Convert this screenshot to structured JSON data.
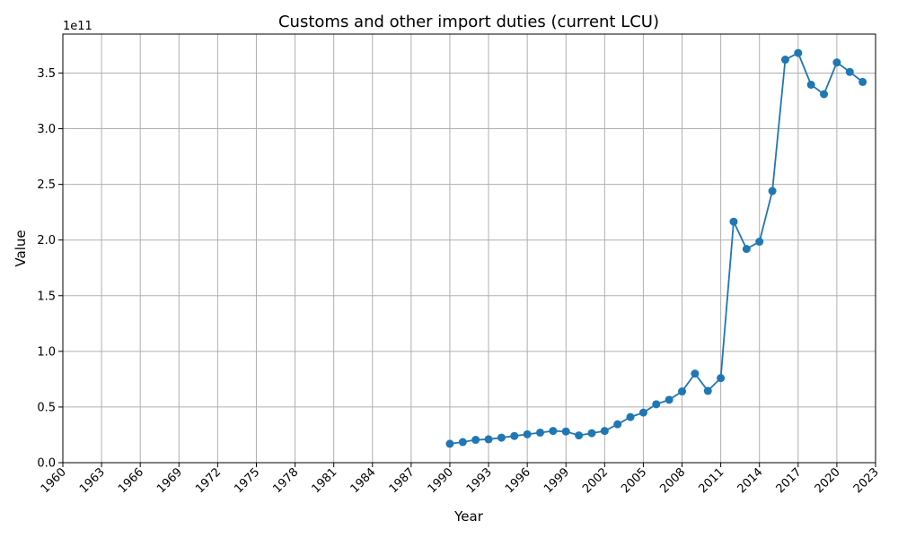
{
  "chart_data": {
    "type": "line",
    "title": "Customs and other import duties (current LCU)",
    "xlabel": "Year",
    "ylabel": "Value",
    "offset_label": "1e11",
    "xlim": [
      1960,
      2023
    ],
    "ylim": [
      0,
      385000000000
    ],
    "x_ticks": [
      "1960",
      "1963",
      "1966",
      "1969",
      "1972",
      "1975",
      "1978",
      "1981",
      "1984",
      "1987",
      "1990",
      "1993",
      "1996",
      "1999",
      "2002",
      "2005",
      "2008",
      "2011",
      "2014",
      "2017",
      "2020",
      "2023"
    ],
    "y_ticks": [
      {
        "value": 0,
        "label": "0.0"
      },
      {
        "value": 50000000000,
        "label": "0.5"
      },
      {
        "value": 100000000000,
        "label": "1.0"
      },
      {
        "value": 150000000000,
        "label": "1.5"
      },
      {
        "value": 200000000000,
        "label": "2.0"
      },
      {
        "value": 250000000000,
        "label": "2.5"
      },
      {
        "value": 300000000000,
        "label": "3.0"
      },
      {
        "value": 350000000000,
        "label": "3.5"
      }
    ],
    "grid": true,
    "line_color": "#1f77b4",
    "x": [
      1990,
      1991,
      1992,
      1993,
      1994,
      1995,
      1996,
      1997,
      1998,
      1999,
      2000,
      2001,
      2002,
      2003,
      2004,
      2005,
      2006,
      2007,
      2008,
      2009,
      2010,
      2011,
      2012,
      2013,
      2014,
      2015,
      2016,
      2017,
      2018,
      2019,
      2020,
      2021,
      2022
    ],
    "values": [
      17000000000,
      18500000000,
      20500000000,
      21000000000,
      22500000000,
      24000000000,
      25500000000,
      27000000000,
      28500000000,
      28000000000,
      24500000000,
      26500000000,
      28500000000,
      34500000000,
      41000000000,
      45000000000,
      52500000000,
      56500000000,
      64000000000,
      80000000000,
      64500000000,
      76000000000,
      216500000000,
      192000000000,
      198500000000,
      244000000000,
      362000000000,
      368000000000,
      339500000000,
      331000000000,
      359500000000,
      351000000000,
      342000000000
    ]
  }
}
